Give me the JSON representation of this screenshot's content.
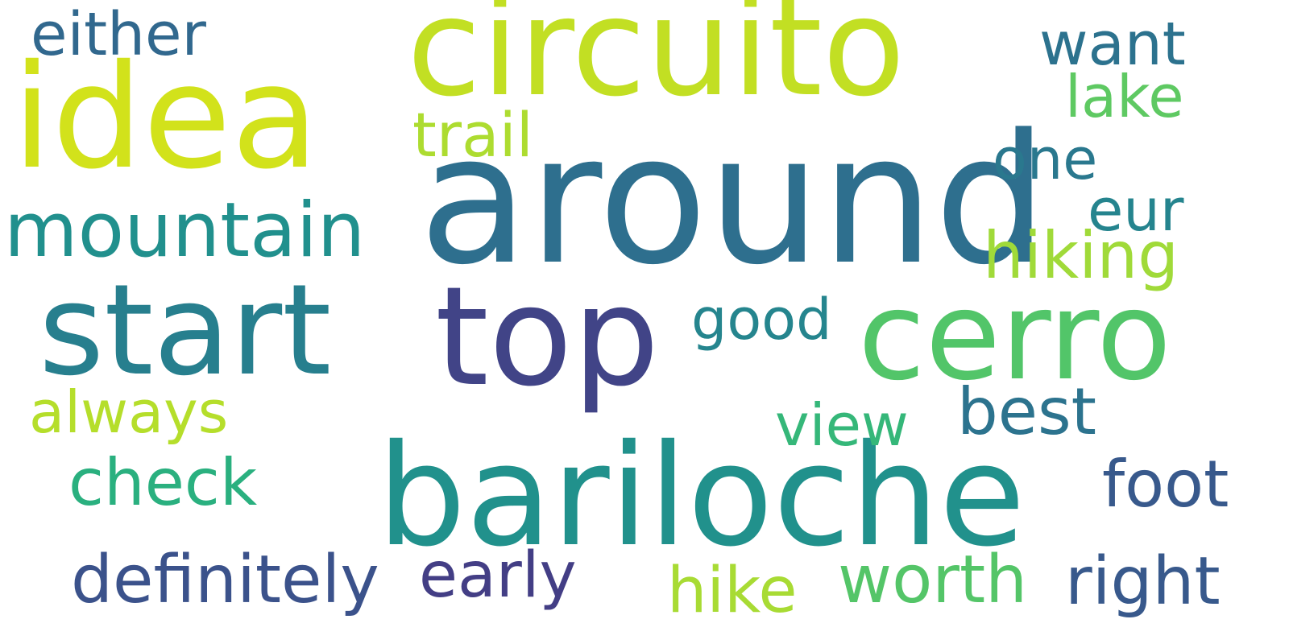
{
  "words": [
    {
      "text": "around",
      "color": "#2e6f8e"
    },
    {
      "text": "circuito",
      "color": "#c2df23"
    },
    {
      "text": "bariloche",
      "color": "#21918c"
    },
    {
      "text": "idea",
      "color": "#d2e21b"
    },
    {
      "text": "start",
      "color": "#277f8e"
    },
    {
      "text": "top",
      "color": "#414487"
    },
    {
      "text": "cerro",
      "color": "#52c569"
    },
    {
      "text": "mountain",
      "color": "#21908d"
    },
    {
      "text": "either",
      "color": "#31688e"
    },
    {
      "text": "want",
      "color": "#2c728e"
    },
    {
      "text": "lake",
      "color": "#5ec962"
    },
    {
      "text": "trail",
      "color": "#addc30"
    },
    {
      "text": "one",
      "color": "#2a788e"
    },
    {
      "text": "eur",
      "color": "#25848e"
    },
    {
      "text": "hiking",
      "color": "#a0da39"
    },
    {
      "text": "good",
      "color": "#25858e"
    },
    {
      "text": "always",
      "color": "#b5de2b"
    },
    {
      "text": "view",
      "color": "#35b779"
    },
    {
      "text": "best",
      "color": "#2c738e"
    },
    {
      "text": "check",
      "color": "#2ab07f"
    },
    {
      "text": "foot",
      "color": "#38598c"
    },
    {
      "text": "definitely",
      "color": "#3b528b"
    },
    {
      "text": "early",
      "color": "#433e85"
    },
    {
      "text": "hike",
      "color": "#a8db34"
    },
    {
      "text": "worth",
      "color": "#54c568"
    },
    {
      "text": "right",
      "color": "#38598c"
    }
  ]
}
